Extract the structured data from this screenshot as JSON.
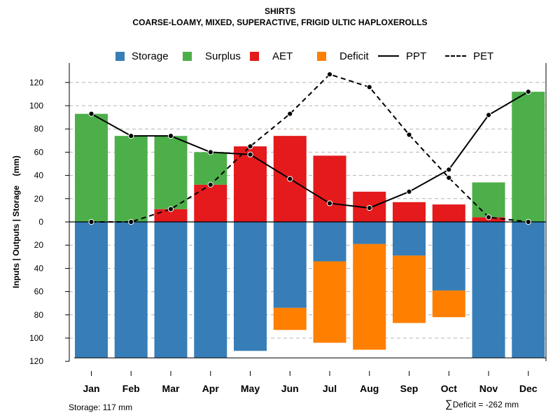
{
  "title": "SHIRTS",
  "subtitle": "COARSE-LOAMY, MIXED, SUPERACTIVE, FRIGID ULTIC HAPLOXEROLLS",
  "legend": [
    {
      "label": "Storage",
      "kind": "swatch",
      "color": "#377EB8"
    },
    {
      "label": "Surplus",
      "kind": "swatch",
      "color": "#4DAF4A"
    },
    {
      "label": "AET",
      "kind": "swatch",
      "color": "#E41A1C"
    },
    {
      "label": "Deficit",
      "kind": "swatch",
      "color": "#FF7F00"
    },
    {
      "label": "PPT",
      "kind": "solid-line",
      "color": "#000000"
    },
    {
      "label": "PET",
      "kind": "dashed-line",
      "color": "#000000"
    }
  ],
  "footer": {
    "storage": "Storage: 117 mm",
    "deficit_symbol": "∑",
    "deficit": "Deficit = -262 mm"
  },
  "chart_data": {
    "type": "bar",
    "title": "SHIRTS",
    "subtitle": "COARSE-LOAMY, MIXED, SUPERACTIVE, FRIGID ULTIC HAPLOXEROLLS",
    "ylabel": "Inputs | Outputs | Storage    (mm)",
    "xlabel": "",
    "ylim": [
      -120,
      130
    ],
    "yticks": [
      120,
      100,
      80,
      60,
      40,
      20,
      0,
      20,
      40,
      60,
      80,
      100,
      120
    ],
    "grid": true,
    "legend_position": "top",
    "categories": [
      "Jan",
      "Feb",
      "Mar",
      "Apr",
      "May",
      "Jun",
      "Jul",
      "Aug",
      "Sep",
      "Oct",
      "Nov",
      "Dec"
    ],
    "series": [
      {
        "name": "AET",
        "kind": "bar-up",
        "color": "#E41A1C",
        "values": [
          0,
          0,
          11,
          32,
          65,
          74,
          57,
          26,
          17,
          15,
          4,
          0
        ]
      },
      {
        "name": "Surplus",
        "kind": "bar-up-stacked",
        "color": "#4DAF4A",
        "values": [
          93,
          74,
          63,
          28,
          0,
          0,
          0,
          0,
          0,
          0,
          30,
          112
        ]
      },
      {
        "name": "Storage",
        "kind": "bar-down",
        "color": "#377EB8",
        "values": [
          117,
          117,
          117,
          117,
          111,
          74,
          34,
          19,
          29,
          59,
          117,
          117
        ]
      },
      {
        "name": "Deficit",
        "kind": "bar-down-stacked",
        "color": "#FF7F00",
        "values": [
          0,
          0,
          0,
          0,
          0,
          19,
          70,
          91,
          58,
          23,
          0,
          0
        ]
      },
      {
        "name": "PPT",
        "kind": "line",
        "color": "#000000",
        "values": [
          93,
          74,
          74,
          60,
          58,
          37,
          16,
          12,
          26,
          45,
          92,
          112
        ]
      },
      {
        "name": "PET",
        "kind": "dashed-line",
        "color": "#000000",
        "values": [
          0,
          0,
          11,
          32,
          65,
          93,
          127,
          116,
          75,
          38,
          4,
          0
        ]
      }
    ]
  }
}
